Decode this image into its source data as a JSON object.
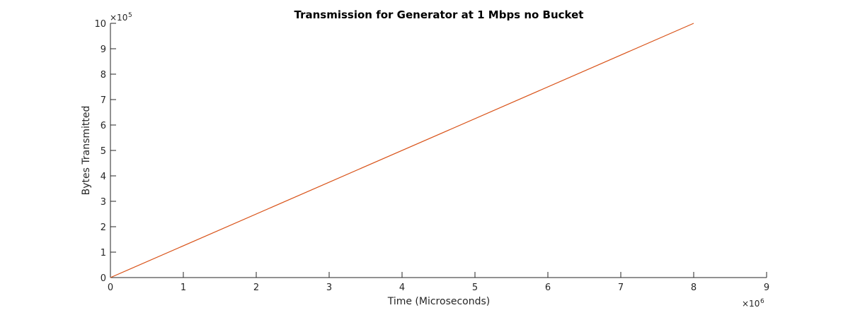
{
  "chart_data": {
    "type": "line",
    "title": "Transmission for Generator at 1 Mbps no Bucket",
    "xlabel": "Time (Microseconds)",
    "ylabel": "Bytes Transmitted",
    "x_multiplier": {
      "base": "×10",
      "exponent": "6"
    },
    "y_multiplier": {
      "base": "×10",
      "exponent": "5"
    },
    "xlim": [
      0,
      9
    ],
    "ylim": [
      0,
      10
    ],
    "x_ticks": [
      "0",
      "1",
      "2",
      "3",
      "4",
      "5",
      "6",
      "7",
      "8",
      "9"
    ],
    "y_ticks": [
      "0",
      "1",
      "2",
      "3",
      "4",
      "5",
      "6",
      "7",
      "8",
      "9",
      "10"
    ],
    "grid": false,
    "series": [
      {
        "color": "#D95319",
        "x": [
          0,
          8.0
        ],
        "y": [
          0,
          10.0
        ]
      }
    ]
  }
}
